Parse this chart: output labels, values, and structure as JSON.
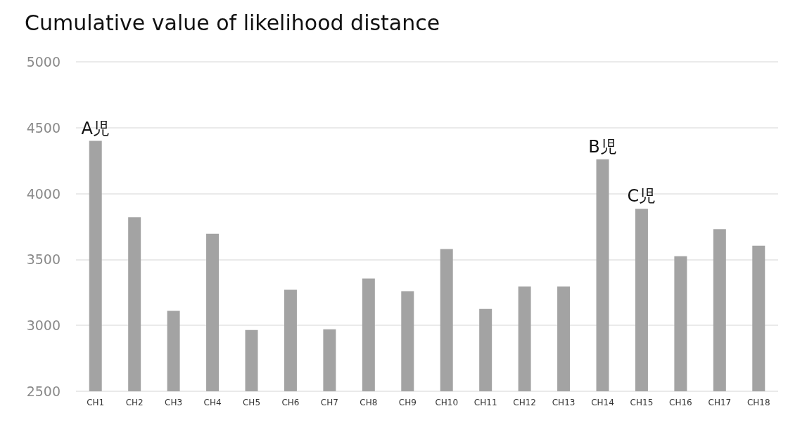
{
  "chart_data": {
    "type": "bar",
    "title": "Cumulative value of likelihood distance",
    "categories": [
      "CH1",
      "CH2",
      "CH3",
      "CH4",
      "CH5",
      "CH6",
      "CH7",
      "CH8",
      "CH9",
      "CH10",
      "CH11",
      "CH12",
      "CH13",
      "CH14",
      "CH15",
      "CH16",
      "CH17",
      "CH18"
    ],
    "values": [
      4400,
      3820,
      3110,
      3695,
      2965,
      3270,
      2970,
      3355,
      3260,
      3580,
      3125,
      3295,
      3295,
      4260,
      3885,
      3525,
      3730,
      3605
    ],
    "color": "#a3a3a3",
    "ylim": [
      2500,
      5000
    ],
    "yticks": [
      2500,
      3000,
      3500,
      4000,
      4500,
      5000
    ],
    "grid": "y",
    "annotations": [
      {
        "text": "A児",
        "x": "CH1",
        "y": 4400
      },
      {
        "text": "B児",
        "x": "CH14",
        "y": 4260
      },
      {
        "text": "C児",
        "x": "CH15",
        "y": 3885
      }
    ]
  }
}
